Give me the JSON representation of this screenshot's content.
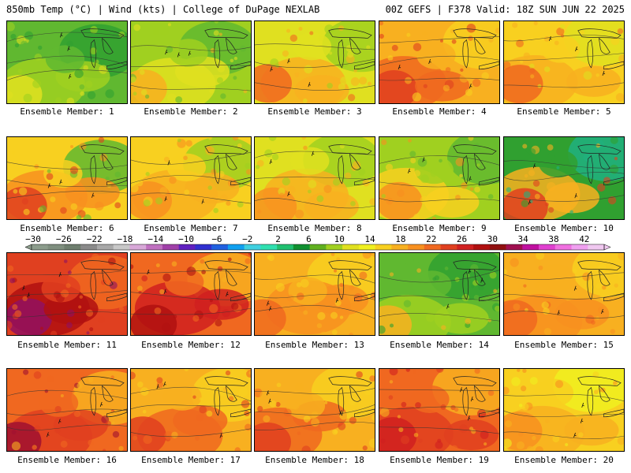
{
  "header": {
    "left": "850mb Temp (°C) | Wind (kts) | College of DuPage NEXLAB",
    "right": "00Z GEFS | F378 Valid: 18Z SUN JUN 22 2025"
  },
  "colorbar": {
    "labels": [
      "−30",
      "−26",
      "−22",
      "−18",
      "−14",
      "−10",
      "−6",
      "−2",
      "2",
      "6",
      "10",
      "14",
      "18",
      "22",
      "26",
      "30",
      "34",
      "38",
      "42"
    ],
    "colors": [
      "#8c9c8c",
      "#7f8f7f",
      "#6e7e6e",
      "#8a8a8a",
      "#a8a8a8",
      "#c8c8c8",
      "#d8a8d8",
      "#c070c0",
      "#a040a8",
      "#6020c0",
      "#3030d0",
      "#2060e0",
      "#10a0f0",
      "#40d0e0",
      "#30e0b0",
      "#20c070",
      "#109030",
      "#60b020",
      "#a0d020",
      "#e0e020",
      "#f0f020",
      "#f8d020",
      "#f8b020",
      "#f89020",
      "#f06820",
      "#e04020",
      "#d02020",
      "#b01010",
      "#901010",
      "#a01050",
      "#c010a0",
      "#e040d0",
      "#f070e0",
      "#f0a0f0",
      "#f0c8f0"
    ]
  },
  "members": [
    {
      "label": "Ensemble Member: 1",
      "palette": [
        "#30a030",
        "#60b830",
        "#a0d020",
        "#e0e020"
      ],
      "warm": 0
    },
    {
      "label": "Ensemble Member: 2",
      "palette": [
        "#60b830",
        "#a0d020",
        "#e0e020",
        "#f8b020"
      ],
      "warm": 1
    },
    {
      "label": "Ensemble Member: 3",
      "palette": [
        "#a0d020",
        "#e0e020",
        "#f8b020",
        "#f06820"
      ],
      "warm": 2
    },
    {
      "label": "Ensemble Member: 4",
      "palette": [
        "#f8d020",
        "#f8b020",
        "#f06820",
        "#e04020"
      ],
      "warm": 3
    },
    {
      "label": "Ensemble Member: 5",
      "palette": [
        "#e0e020",
        "#f8d020",
        "#f8b020",
        "#f06820"
      ],
      "warm": 2
    },
    {
      "label": "Ensemble Member: 6",
      "palette": [
        "#60b830",
        "#f8d020",
        "#f89020",
        "#e04020"
      ],
      "warm": 2
    },
    {
      "label": "Ensemble Member: 7",
      "palette": [
        "#a0d020",
        "#f8d020",
        "#f8b020",
        "#f89020"
      ],
      "warm": 2
    },
    {
      "label": "Ensemble Member: 8",
      "palette": [
        "#a0d020",
        "#e0e020",
        "#f8b020",
        "#f89020"
      ],
      "warm": 2
    },
    {
      "label": "Ensemble Member: 9",
      "palette": [
        "#60b830",
        "#a0d020",
        "#f8d020",
        "#f89020"
      ],
      "warm": 1
    },
    {
      "label": "Ensemble Member: 10",
      "palette": [
        "#20b080",
        "#30a030",
        "#f8b020",
        "#e04020"
      ],
      "warm": 2
    },
    {
      "label": "Ensemble Member: 11",
      "palette": [
        "#f06820",
        "#e04020",
        "#b01010",
        "#901060"
      ],
      "warm": 4
    },
    {
      "label": "Ensemble Member: 12",
      "palette": [
        "#f8b020",
        "#f06820",
        "#d02020",
        "#b01010"
      ],
      "warm": 4
    },
    {
      "label": "Ensemble Member: 13",
      "palette": [
        "#f8d020",
        "#f8b020",
        "#f89020",
        "#f06820"
      ],
      "warm": 3
    },
    {
      "label": "Ensemble Member: 14",
      "palette": [
        "#30a030",
        "#60b830",
        "#a0d020",
        "#f8b020"
      ],
      "warm": 1
    },
    {
      "label": "Ensemble Member: 15",
      "palette": [
        "#f8d020",
        "#f8b020",
        "#f89020",
        "#f06820"
      ],
      "warm": 3
    },
    {
      "label": "Ensemble Member: 16",
      "palette": [
        "#f8b020",
        "#f06820",
        "#e04020",
        "#a01030"
      ],
      "warm": 4
    },
    {
      "label": "Ensemble Member: 17",
      "palette": [
        "#f8d020",
        "#f8b020",
        "#f06820",
        "#e04020"
      ],
      "warm": 3
    },
    {
      "label": "Ensemble Member: 18",
      "palette": [
        "#f8d020",
        "#f8b020",
        "#f06820",
        "#e04020"
      ],
      "warm": 3
    },
    {
      "label": "Ensemble Member: 19",
      "palette": [
        "#f8b020",
        "#f06820",
        "#e04020",
        "#d02020"
      ],
      "warm": 4
    },
    {
      "label": "Ensemble Member: 20",
      "palette": [
        "#f0f020",
        "#f8d020",
        "#f8b020",
        "#f89020"
      ],
      "warm": 2
    }
  ]
}
